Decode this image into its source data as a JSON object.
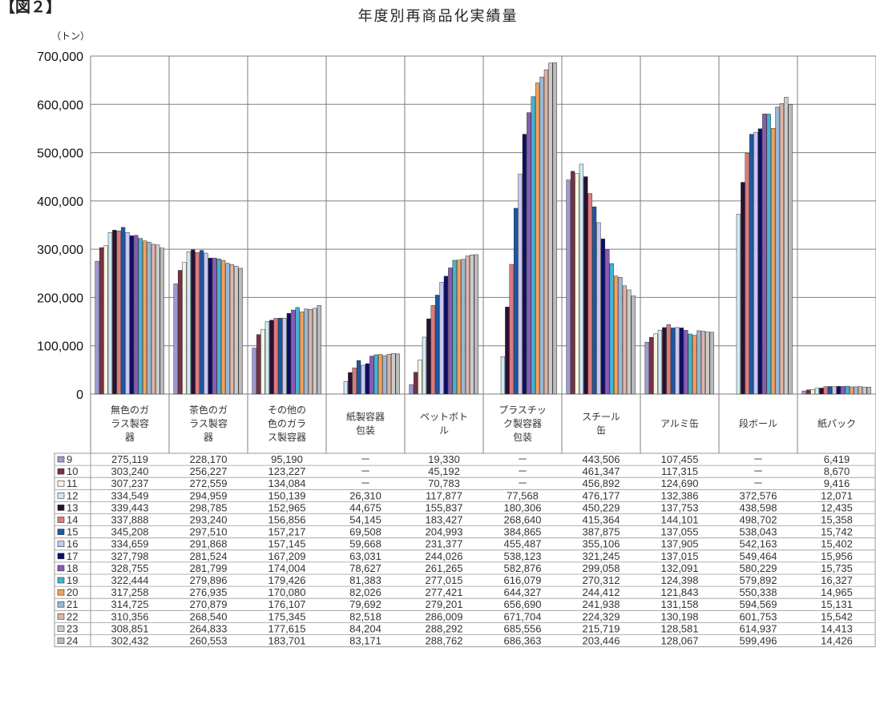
{
  "header": {
    "figure_label": "【図２】",
    "unit": "（トン）"
  },
  "colors": {
    "series": [
      "#9b9bd3",
      "#7a2f45",
      "#f6f4de",
      "#cfeaf5",
      "#2b0f33",
      "#e0797a",
      "#1d57a6",
      "#c8c8f0",
      "#0d0d68",
      "#8a5ab8",
      "#43b3d3",
      "#f3a15c",
      "#9ab7d7",
      "#ddb3a8",
      "#cccccc",
      "#bbbbbb"
    ],
    "grid": "#7f7f7f",
    "table_border": "#9a9a9a"
  },
  "chart_data": {
    "type": "bar",
    "title": "年度別再商品化実績量",
    "ylabel": "（トン）",
    "ylim": [
      0,
      700000
    ],
    "yticks": [
      "0",
      "100,000",
      "200,000",
      "300,000",
      "400,000",
      "500,000",
      "600,000",
      "700,000"
    ],
    "categories": [
      "無色のガラス製容器",
      "茶色のガラス製容器",
      "その他の色のガラス製容器",
      "紙製容器包装",
      "ペットボトル",
      "プラスチック製容器包装",
      "スチール缶",
      "アルミ缶",
      "段ボール",
      "紙パック"
    ],
    "category_lines": [
      [
        "無色のガ",
        "ラス製容",
        "器"
      ],
      [
        "茶色のガ",
        "ラス製容",
        "器"
      ],
      [
        "その他の",
        "色のガラ",
        "ス製容器"
      ],
      [
        "紙製容器",
        "包装"
      ],
      [
        "ペットボト",
        "ル"
      ],
      [
        "プラスチッ",
        "ク製容器",
        "包装"
      ],
      [
        "スチール",
        "缶"
      ],
      [
        "アルミ缶"
      ],
      [
        "段ボール"
      ],
      [
        "紙パック"
      ]
    ],
    "series": [
      {
        "name": "9",
        "values": [
          275119,
          228170,
          95190,
          null,
          19330,
          null,
          443506,
          107455,
          null,
          6419
        ],
        "labels": [
          "275,119",
          "228,170",
          "95,190",
          "－",
          "19,330",
          "－",
          "443,506",
          "107,455",
          "－",
          "6,419"
        ]
      },
      {
        "name": "10",
        "values": [
          303240,
          256227,
          123227,
          null,
          45192,
          null,
          461347,
          117315,
          null,
          8670
        ],
        "labels": [
          "303,240",
          "256,227",
          "123,227",
          "－",
          "45,192",
          "－",
          "461,347",
          "117,315",
          "－",
          "8,670"
        ]
      },
      {
        "name": "11",
        "values": [
          307237,
          272559,
          134084,
          null,
          70783,
          null,
          456892,
          124690,
          null,
          9416
        ],
        "labels": [
          "307,237",
          "272,559",
          "134,084",
          "－",
          "70,783",
          "－",
          "456,892",
          "124,690",
          "－",
          "9,416"
        ]
      },
      {
        "name": "12",
        "values": [
          334549,
          294959,
          150139,
          26310,
          117877,
          77568,
          476177,
          132386,
          372576,
          12071
        ],
        "labels": [
          "334,549",
          "294,959",
          "150,139",
          "26,310",
          "117,877",
          "77,568",
          "476,177",
          "132,386",
          "372,576",
          "12,071"
        ]
      },
      {
        "name": "13",
        "values": [
          339443,
          298785,
          152965,
          44675,
          155837,
          180306,
          450229,
          137753,
          438598,
          12435
        ],
        "labels": [
          "339,443",
          "298,785",
          "152,965",
          "44,675",
          "155,837",
          "180,306",
          "450,229",
          "137,753",
          "438,598",
          "12,435"
        ]
      },
      {
        "name": "14",
        "values": [
          337888,
          293240,
          156856,
          54145,
          183427,
          268640,
          415364,
          144101,
          498702,
          15358
        ],
        "labels": [
          "337,888",
          "293,240",
          "156,856",
          "54,145",
          "183,427",
          "268,640",
          "415,364",
          "144,101",
          "498,702",
          "15,358"
        ]
      },
      {
        "name": "15",
        "values": [
          345208,
          297510,
          157217,
          69508,
          204993,
          384865,
          387875,
          137055,
          538043,
          15742
        ],
        "labels": [
          "345,208",
          "297,510",
          "157,217",
          "69,508",
          "204,993",
          "384,865",
          "387,875",
          "137,055",
          "538,043",
          "15,742"
        ]
      },
      {
        "name": "16",
        "values": [
          334659,
          291868,
          157145,
          59668,
          231377,
          455487,
          355106,
          137905,
          542163,
          15402
        ],
        "labels": [
          "334,659",
          "291,868",
          "157,145",
          "59,668",
          "231,377",
          "455,487",
          "355,106",
          "137,905",
          "542,163",
          "15,402"
        ]
      },
      {
        "name": "17",
        "values": [
          327798,
          281524,
          167209,
          63031,
          244026,
          538123,
          321245,
          137015,
          549464,
          15956
        ],
        "labels": [
          "327,798",
          "281,524",
          "167,209",
          "63,031",
          "244,026",
          "538,123",
          "321,245",
          "137,015",
          "549,464",
          "15,956"
        ]
      },
      {
        "name": "18",
        "values": [
          328755,
          281799,
          174004,
          78627,
          261265,
          582876,
          299058,
          132091,
          580229,
          15735
        ],
        "labels": [
          "328,755",
          "281,799",
          "174,004",
          "78,627",
          "261,265",
          "582,876",
          "299,058",
          "132,091",
          "580,229",
          "15,735"
        ]
      },
      {
        "name": "19",
        "values": [
          322444,
          279896,
          179426,
          81383,
          277015,
          616079,
          270312,
          124398,
          579892,
          16327
        ],
        "labels": [
          "322,444",
          "279,896",
          "179,426",
          "81,383",
          "277,015",
          "616,079",
          "270,312",
          "124,398",
          "579,892",
          "16,327"
        ]
      },
      {
        "name": "20",
        "values": [
          317258,
          276935,
          170080,
          82026,
          277421,
          644327,
          244412,
          121843,
          550338,
          14965
        ],
        "labels": [
          "317,258",
          "276,935",
          "170,080",
          "82,026",
          "277,421",
          "644,327",
          "244,412",
          "121,843",
          "550,338",
          "14,965"
        ]
      },
      {
        "name": "21",
        "values": [
          314725,
          270879,
          176107,
          79692,
          279201,
          656690,
          241938,
          131158,
          594569,
          15131
        ],
        "labels": [
          "314,725",
          "270,879",
          "176,107",
          "79,692",
          "279,201",
          "656,690",
          "241,938",
          "131,158",
          "594,569",
          "15,131"
        ]
      },
      {
        "name": "22",
        "values": [
          310356,
          268540,
          175345,
          82518,
          286009,
          671704,
          224329,
          130198,
          601753,
          15542
        ],
        "labels": [
          "310,356",
          "268,540",
          "175,345",
          "82,518",
          "286,009",
          "671,704",
          "224,329",
          "130,198",
          "601,753",
          "15,542"
        ]
      },
      {
        "name": "23",
        "values": [
          308851,
          264833,
          177615,
          84204,
          288292,
          685556,
          215719,
          128581,
          614937,
          14413
        ],
        "labels": [
          "308,851",
          "264,833",
          "177,615",
          "84,204",
          "288,292",
          "685,556",
          "215,719",
          "128,581",
          "614,937",
          "14,413"
        ]
      },
      {
        "name": "24",
        "values": [
          302432,
          260553,
          183701,
          83171,
          288762,
          686363,
          203446,
          128067,
          599496,
          14426
        ],
        "labels": [
          "302,432",
          "260,553",
          "183,701",
          "83,171",
          "288,762",
          "686,363",
          "203,446",
          "128,067",
          "599,496",
          "14,426"
        ]
      }
    ],
    "grid": true,
    "legend": "data-table rows"
  }
}
